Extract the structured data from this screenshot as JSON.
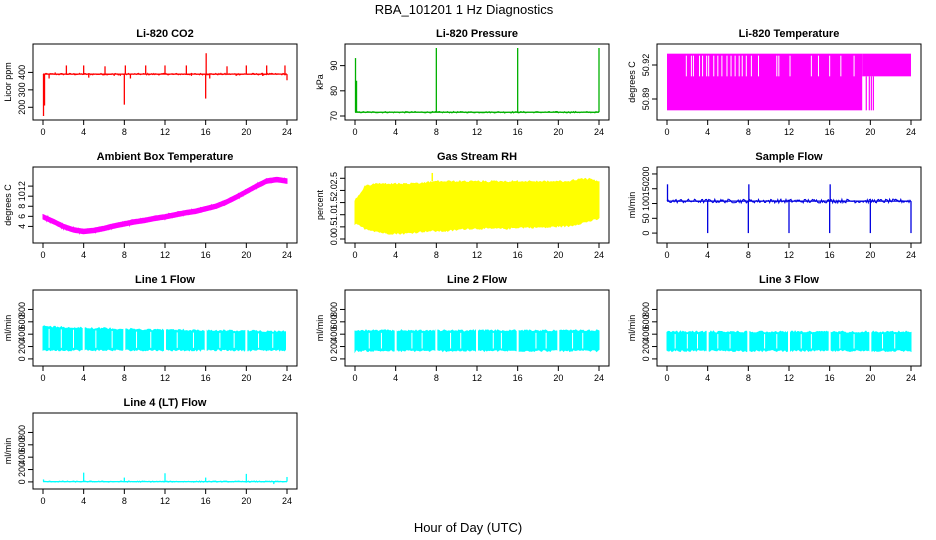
{
  "title": "RBA_101201  1 Hz Diagnostics",
  "xlabel": "Hour of Day (UTC)",
  "chart_data": [
    {
      "type": "line",
      "title": "Li-820 CO2",
      "ylabel": "Licor ppm",
      "xlim": [
        0,
        24
      ],
      "ylim": [
        150,
        540
      ],
      "x_ticks": [
        0,
        4,
        8,
        12,
        16,
        20,
        24
      ],
      "y_ticks": [
        200,
        300,
        400
      ],
      "color": "#ff0000",
      "style": "trace",
      "baseline": 390,
      "band": [
        385,
        395
      ],
      "spikes": [
        {
          "x": 0.05,
          "y": 150
        },
        {
          "x": 0.15,
          "y": 210
        },
        {
          "x": 0.6,
          "y": 365
        },
        {
          "x": 1.2,
          "y": 400
        },
        {
          "x": 1.6,
          "y": 385
        },
        {
          "x": 2.3,
          "y": 440
        },
        {
          "x": 3.1,
          "y": 395
        },
        {
          "x": 4.0,
          "y": 440
        },
        {
          "x": 4.5,
          "y": 370
        },
        {
          "x": 5.5,
          "y": 385
        },
        {
          "x": 6.1,
          "y": 435
        },
        {
          "x": 7.0,
          "y": 380
        },
        {
          "x": 7.6,
          "y": 380
        },
        {
          "x": 8.0,
          "y": 215
        },
        {
          "x": 8.1,
          "y": 440
        },
        {
          "x": 8.6,
          "y": 365
        },
        {
          "x": 10.1,
          "y": 440
        },
        {
          "x": 10.8,
          "y": 385
        },
        {
          "x": 12.0,
          "y": 440
        },
        {
          "x": 12.8,
          "y": 385
        },
        {
          "x": 14.1,
          "y": 440
        },
        {
          "x": 14.6,
          "y": 380
        },
        {
          "x": 16.0,
          "y": 250
        },
        {
          "x": 16.05,
          "y": 510
        },
        {
          "x": 16.4,
          "y": 365
        },
        {
          "x": 18.1,
          "y": 435
        },
        {
          "x": 19.0,
          "y": 380
        },
        {
          "x": 20.0,
          "y": 440
        },
        {
          "x": 20.8,
          "y": 385
        },
        {
          "x": 21.6,
          "y": 380
        },
        {
          "x": 22.0,
          "y": 440
        },
        {
          "x": 23.8,
          "y": 440
        },
        {
          "x": 24.0,
          "y": 355
        }
      ]
    },
    {
      "type": "line",
      "title": "Li-820 Pressure",
      "ylabel": "kPa",
      "xlim": [
        0,
        24
      ],
      "ylim": [
        70,
        97
      ],
      "x_ticks": [
        0,
        4,
        8,
        12,
        16,
        20,
        24
      ],
      "y_ticks": [
        70,
        80,
        90
      ],
      "color": "#00b000",
      "style": "trace",
      "baseline": 71.5,
      "band": [
        71.2,
        71.8
      ],
      "spikes": [
        {
          "x": 0.05,
          "y": 93
        },
        {
          "x": 0.15,
          "y": 84
        },
        {
          "x": 8.0,
          "y": 97
        },
        {
          "x": 16.0,
          "y": 97
        },
        {
          "x": 24.0,
          "y": 97
        }
      ]
    },
    {
      "type": "area",
      "title": "Li-820 Temperature",
      "ylabel": "degrees C",
      "xlim": [
        0,
        24
      ],
      "ylim": [
        50.875,
        50.935
      ],
      "x_ticks": [
        0,
        4,
        8,
        12,
        16,
        20,
        24
      ],
      "y_ticks": [
        50.89,
        50.92
      ],
      "y_decimals": 2,
      "color": "#ff00ff",
      "style": "flicker",
      "high_level": 50.93,
      "mid_level": 50.91,
      "low_level": 50.88,
      "full_span": [
        0,
        19.2
      ],
      "mid_span": [
        19.2,
        24
      ],
      "dropouts": [
        1.9,
        2.4,
        2.6,
        3.2,
        3.5,
        3.9,
        4.1,
        4.6,
        5.0,
        5.4,
        5.9,
        6.3,
        6.7,
        7.1,
        7.4,
        7.8,
        8.3,
        9.0,
        10.8,
        11.0,
        12.1,
        14.2,
        14.9,
        16.0,
        17.1,
        18.4
      ],
      "low_dips": [
        19.6,
        19.9,
        20.1,
        20.3
      ]
    },
    {
      "type": "line",
      "title": "Ambient Box Temperature",
      "ylabel": "degrees C",
      "xlim": [
        0,
        24
      ],
      "ylim": [
        1.5,
        15
      ],
      "x_ticks": [
        0,
        4,
        8,
        12,
        16,
        20,
        24
      ],
      "y_ticks": [
        4,
        6,
        8,
        10,
        12
      ],
      "color": "#ff00ff",
      "style": "band",
      "band_width": 0.9,
      "x": [
        0,
        1,
        2,
        3,
        4,
        5,
        6,
        7,
        8,
        9,
        10,
        11,
        12,
        13,
        14,
        15,
        16,
        17,
        18,
        19,
        20,
        21,
        22,
        23,
        24
      ],
      "y": [
        5.9,
        5.0,
        4.0,
        3.3,
        3.0,
        3.2,
        3.6,
        4.1,
        4.5,
        4.9,
        5.2,
        5.6,
        5.9,
        6.3,
        6.7,
        7.0,
        7.5,
        8.0,
        8.8,
        9.8,
        10.9,
        12.0,
        13.0,
        13.3,
        13.0
      ]
    },
    {
      "type": "area",
      "title": "Gas Stream RH",
      "ylabel": "percent",
      "xlim": [
        0,
        24
      ],
      "ylim": [
        0,
        2.8
      ],
      "x_ticks": [
        0,
        4,
        8,
        12,
        16,
        20,
        24
      ],
      "y_ticks": [
        0.0,
        0.5,
        1.0,
        1.5,
        2.0,
        2.5
      ],
      "y_decimals": 1,
      "color": "#ffff00",
      "style": "band",
      "band_width": 0,
      "upper": [
        1.6,
        2.2,
        2.3,
        2.3,
        2.3,
        2.3,
        2.3,
        2.35,
        2.4,
        2.4,
        2.4,
        2.4,
        2.4,
        2.4,
        2.4,
        2.4,
        2.4,
        2.4,
        2.4,
        2.4,
        2.4,
        2.4,
        2.5,
        2.5,
        2.4
      ],
      "lower": [
        0.6,
        0.4,
        0.3,
        0.2,
        0.2,
        0.2,
        0.25,
        0.3,
        0.3,
        0.3,
        0.35,
        0.4,
        0.4,
        0.4,
        0.4,
        0.4,
        0.45,
        0.45,
        0.45,
        0.45,
        0.5,
        0.5,
        0.6,
        0.7,
        0.8
      ],
      "peak": {
        "x": 7.6,
        "y": 2.72
      }
    },
    {
      "type": "line",
      "title": "Sample Flow",
      "ylabel": "ml/min",
      "xlim": [
        0,
        24
      ],
      "ylim": [
        -20,
        210
      ],
      "x_ticks": [
        0,
        4,
        8,
        12,
        16,
        20,
        24
      ],
      "y_ticks": [
        0,
        50,
        100,
        150,
        200
      ],
      "color": "#0000e0",
      "style": "trace",
      "baseline": 108,
      "band": [
        102,
        115
      ],
      "spikes": [
        {
          "x": 0.05,
          "y": 165
        },
        {
          "x": 4.0,
          "y": 0
        },
        {
          "x": 8.0,
          "y": 0
        },
        {
          "x": 8.05,
          "y": 165
        },
        {
          "x": 12.0,
          "y": 0
        },
        {
          "x": 16.0,
          "y": 0
        },
        {
          "x": 16.05,
          "y": 165
        },
        {
          "x": 20.0,
          "y": 0
        },
        {
          "x": 24.0,
          "y": 0
        }
      ]
    },
    {
      "type": "area",
      "title": "Line 1 Flow",
      "ylabel": "ml/min",
      "xlim": [
        0,
        24
      ],
      "ylim": [
        -50,
        1050
      ],
      "x_ticks": [
        0,
        4,
        8,
        12,
        16,
        20,
        24
      ],
      "y_ticks": [
        0,
        200,
        400,
        600,
        800
      ],
      "color": "#00ffff",
      "style": "band",
      "band_width": 0,
      "upper": [
        540,
        530,
        525,
        520,
        515,
        510,
        505,
        500,
        495,
        490,
        488,
        485,
        480,
        478,
        476,
        474,
        472,
        470,
        468,
        466,
        464,
        462,
        460,
        458,
        455
      ],
      "lower": [
        130,
        130,
        130,
        130,
        130,
        130,
        130,
        130,
        130,
        130,
        130,
        130,
        130,
        130,
        130,
        130,
        130,
        130,
        130,
        130,
        130,
        130,
        130,
        130,
        130
      ],
      "gaps": [
        4.0,
        8.0,
        12.0,
        16.0,
        20.0,
        24.0
      ],
      "notches": [
        0.6,
        1.8,
        3.0,
        5.2,
        6.8,
        9.2,
        10.6,
        13.2,
        14.8,
        17.4,
        18.8,
        21.2,
        22.6
      ]
    },
    {
      "type": "area",
      "title": "Line 2 Flow",
      "ylabel": "ml/min",
      "xlim": [
        0,
        24
      ],
      "ylim": [
        -50,
        1050
      ],
      "x_ticks": [
        0,
        4,
        8,
        12,
        16,
        20,
        24
      ],
      "y_ticks": [
        0,
        200,
        400,
        600,
        800
      ],
      "color": "#00ffff",
      "style": "band",
      "band_width": 0,
      "upper": [
        470,
        470,
        470,
        470,
        470,
        470,
        470,
        470,
        470,
        470,
        470,
        470,
        470,
        470,
        470,
        470,
        470,
        470,
        470,
        470,
        470,
        470,
        470,
        470,
        470
      ],
      "lower": [
        120,
        120,
        120,
        120,
        120,
        120,
        120,
        120,
        120,
        120,
        120,
        120,
        120,
        120,
        120,
        120,
        120,
        120,
        120,
        120,
        120,
        120,
        120,
        120,
        120
      ],
      "gaps": [
        4.0,
        8.0,
        12.0,
        16.0,
        20.0
      ],
      "notches": [
        1.4,
        2.6,
        5.6,
        6.6,
        9.4,
        10.4,
        13.6,
        14.4,
        17.8,
        18.8,
        21.4,
        22.4
      ]
    },
    {
      "type": "area",
      "title": "Line 3 Flow",
      "ylabel": "ml/min",
      "xlim": [
        0,
        24
      ],
      "ylim": [
        -50,
        1050
      ],
      "x_ticks": [
        0,
        4,
        8,
        12,
        16,
        20,
        24
      ],
      "y_ticks": [
        0,
        200,
        400,
        600,
        800
      ],
      "color": "#00ffff",
      "style": "band",
      "band_width": 0,
      "upper": [
        450,
        450,
        450,
        450,
        450,
        450,
        450,
        450,
        450,
        450,
        450,
        450,
        450,
        450,
        450,
        450,
        450,
        450,
        450,
        450,
        450,
        450,
        450,
        450,
        450
      ],
      "lower": [
        120,
        120,
        120,
        120,
        120,
        120,
        120,
        120,
        120,
        120,
        120,
        120,
        120,
        120,
        120,
        120,
        120,
        120,
        120,
        120,
        120,
        120,
        120,
        120,
        120
      ],
      "gaps": [
        4.0,
        8.0,
        12.0,
        16.0,
        20.0
      ],
      "notches": [
        0.8,
        2.0,
        3.0,
        5.0,
        6.2,
        9.6,
        10.8,
        13.2,
        14.2,
        17.0,
        18.4,
        21.2,
        22.4
      ]
    },
    {
      "type": "line",
      "title": "Line 4 (LT) Flow",
      "ylabel": "ml/min",
      "xlim": [
        0,
        24
      ],
      "ylim": [
        -50,
        1050
      ],
      "x_ticks": [
        0,
        4,
        8,
        12,
        16,
        20,
        24
      ],
      "y_ticks": [
        0,
        200,
        400,
        600,
        800
      ],
      "color": "#00ffff",
      "style": "trace",
      "baseline": 5,
      "band": [
        -5,
        15
      ],
      "spikes": [
        {
          "x": 0.05,
          "y": 40
        },
        {
          "x": 4.0,
          "y": 150
        },
        {
          "x": 8.0,
          "y": 70
        },
        {
          "x": 12.0,
          "y": 140
        },
        {
          "x": 16.0,
          "y": 70
        },
        {
          "x": 20.0,
          "y": 130
        },
        {
          "x": 22.7,
          "y": -35
        },
        {
          "x": 24.0,
          "y": 80
        }
      ]
    }
  ]
}
